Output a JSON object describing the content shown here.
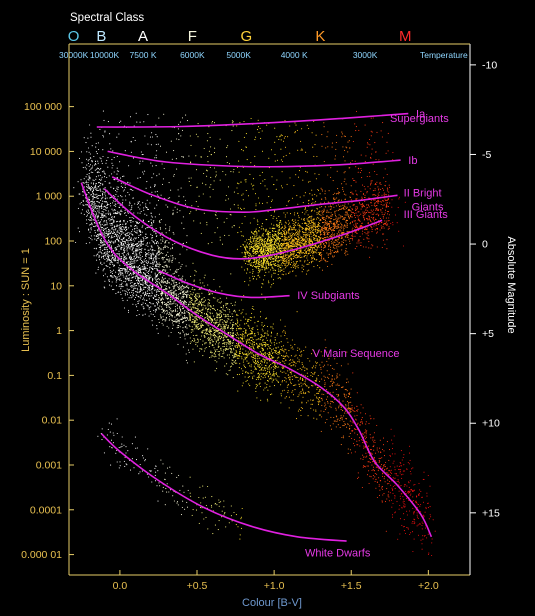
{
  "chart_data": {
    "type": "scatter",
    "title": "Spectral Class",
    "xlabel": "Colour [B-V]",
    "ylabel": "Luminosity : SUN = 1",
    "y2label": "Absolute Magnitude",
    "xlim": [
      -0.33,
      2.27
    ],
    "ylim_log": [
      3.5e-06,
      2500000
    ],
    "y_scale": "log",
    "grid": false,
    "spectral_classes": [
      {
        "label": "O",
        "x": -0.3,
        "color": "#5cc8e8"
      },
      {
        "label": "B",
        "x": -0.12,
        "color": "#bfe8ff"
      },
      {
        "label": "A",
        "x": 0.15,
        "color": "#ffffff"
      },
      {
        "label": "F",
        "x": 0.47,
        "color": "#f4f4dc"
      },
      {
        "label": "G",
        "x": 0.82,
        "color": "#ffd23a"
      },
      {
        "label": "K",
        "x": 1.3,
        "color": "#ff9a28"
      },
      {
        "label": "M",
        "x": 1.85,
        "color": "#ff2a2a"
      }
    ],
    "temperatures": [
      {
        "label": "30000K",
        "x": -0.3
      },
      {
        "label": "10000K",
        "x": -0.1
      },
      {
        "label": "7500 K",
        "x": 0.15
      },
      {
        "label": "6000K",
        "x": 0.47
      },
      {
        "label": "5000K",
        "x": 0.77
      },
      {
        "label": "4000 K",
        "x": 1.13
      },
      {
        "label": "3000K",
        "x": 1.59
      }
    ],
    "temperature_label": "Temperature",
    "x_ticks": [
      {
        "label": "0.0",
        "x": 0.0
      },
      {
        "label": "+0.5",
        "x": 0.5
      },
      {
        "label": "+1.0",
        "x": 1.0
      },
      {
        "label": "+1.5",
        "x": 1.5
      },
      {
        "label": "+2.0",
        "x": 2.0
      }
    ],
    "y_ticks": [
      {
        "label": "100 000",
        "v": 100000
      },
      {
        "label": "10 000",
        "v": 10000
      },
      {
        "label": "1 000",
        "v": 1000
      },
      {
        "label": "100",
        "v": 100
      },
      {
        "label": "10",
        "v": 10
      },
      {
        "label": "1",
        "v": 1
      },
      {
        "label": "0.1",
        "v": 0.1
      },
      {
        "label": "0.01",
        "v": 0.01
      },
      {
        "label": "0.001",
        "v": 0.001
      },
      {
        "label": "0.0001",
        "v": 0.0001
      },
      {
        "label": "0.000 01",
        "v": 1e-05
      }
    ],
    "mag_ticks": [
      {
        "label": "-10",
        "m": -10
      },
      {
        "label": "-5",
        "m": -5
      },
      {
        "label": "0",
        "m": 0
      },
      {
        "label": "+5",
        "m": 5
      },
      {
        "label": "+10",
        "m": 10
      },
      {
        "label": "+15",
        "m": 15
      }
    ],
    "luminosity_classes": [
      {
        "name": "Ia",
        "label": "Ia",
        "points": [
          [
            -0.15,
            35000
          ],
          [
            0.4,
            36000
          ],
          [
            1.0,
            44000
          ],
          [
            1.45,
            55000
          ],
          [
            1.87,
            70000
          ]
        ],
        "label_at": [
          1.92,
          70000
        ]
      },
      {
        "name": "Ib",
        "label": "Ib",
        "points": [
          [
            -0.08,
            10000
          ],
          [
            0.3,
            5800
          ],
          [
            0.8,
            4600
          ],
          [
            1.2,
            4700
          ],
          [
            1.5,
            5200
          ],
          [
            1.82,
            6400
          ]
        ],
        "label_at": [
          1.87,
          6400
        ]
      },
      {
        "name": "II",
        "label": "II Bright",
        "label2": "Giants",
        "points": [
          [
            -0.05,
            2700
          ],
          [
            0.2,
            1100
          ],
          [
            0.5,
            520
          ],
          [
            0.8,
            440
          ],
          [
            1.0,
            500
          ],
          [
            1.3,
            660
          ],
          [
            1.55,
            800
          ],
          [
            1.8,
            1050
          ]
        ],
        "label_at": [
          1.84,
          1200
        ]
      },
      {
        "name": "III",
        "label": "III Giants",
        "points": [
          [
            -0.1,
            1450
          ],
          [
            0.1,
            350
          ],
          [
            0.35,
            100
          ],
          [
            0.6,
            48
          ],
          [
            0.8,
            40
          ],
          [
            1.0,
            50
          ],
          [
            1.2,
            75
          ],
          [
            1.45,
            140
          ],
          [
            1.7,
            290
          ]
        ],
        "label_at": [
          1.84,
          400
        ]
      },
      {
        "name": "IV",
        "label": "IV Subgiants",
        "points": [
          [
            0.25,
            22
          ],
          [
            0.45,
            11
          ],
          [
            0.65,
            6.8
          ],
          [
            0.85,
            5.5
          ],
          [
            1.1,
            6
          ]
        ],
        "label_at": [
          1.15,
          6.2
        ]
      },
      {
        "name": "V",
        "label": "V Main Sequence",
        "points": [
          [
            -0.25,
            2000
          ],
          [
            -0.15,
            250
          ],
          [
            -0.05,
            60
          ],
          [
            0.1,
            20
          ],
          [
            0.3,
            7
          ],
          [
            0.5,
            2.2
          ],
          [
            0.7,
            0.8
          ],
          [
            0.9,
            0.3
          ],
          [
            1.1,
            0.14
          ],
          [
            1.3,
            0.055
          ],
          [
            1.45,
            0.02
          ],
          [
            1.55,
            0.006
          ],
          [
            1.65,
            0.0012
          ],
          [
            1.8,
            0.00035
          ],
          [
            1.95,
            8e-05
          ],
          [
            2.02,
            2.5e-05
          ]
        ],
        "label_at": [
          1.25,
          0.32
        ]
      },
      {
        "name": "WD",
        "label": "White Dwarfs",
        "points": [
          [
            -0.12,
            0.005
          ],
          [
            0.0,
            0.002
          ],
          [
            0.25,
            0.00045
          ],
          [
            0.55,
            0.00011
          ],
          [
            0.85,
            4.3e-05
          ],
          [
            1.15,
            2.5e-05
          ],
          [
            1.47,
            2e-05
          ]
        ],
        "label_at": [
          1.2,
          1.1e-05
        ]
      }
    ],
    "colors": {
      "axis": "#e8ce68",
      "tick_text": "#e8c050",
      "curve": "#e020e0",
      "curve_label": "#e63ae6",
      "xlabel": "#6f99cf",
      "temp_text": "#8fd6ff",
      "header_text": "#ffffff",
      "plot_bg": "#000000"
    },
    "groups_label": "Supergiants"
  }
}
